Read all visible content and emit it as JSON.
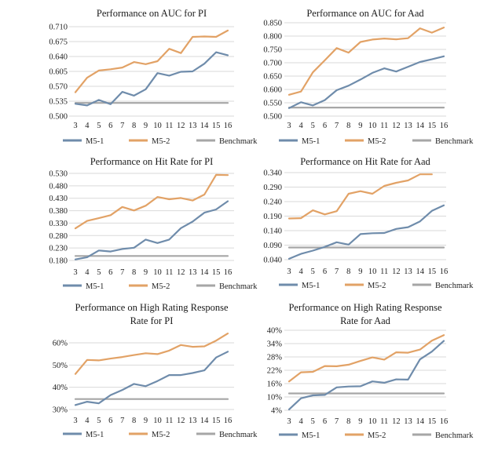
{
  "colors": {
    "M5-1": "#6f8cab",
    "M5-2": "#e2a266",
    "Benchmark": "#a6a6a6"
  },
  "chart_data": [
    {
      "type": "line",
      "title": [
        "Performance on AUC for PI"
      ],
      "x": [
        3,
        4,
        5,
        6,
        7,
        8,
        9,
        10,
        11,
        12,
        13,
        14,
        15,
        16
      ],
      "yticks": [
        "0.500",
        "0.535",
        "0.570",
        "0.605",
        "0.640",
        "0.675",
        "0.710"
      ],
      "ylim": [
        0.5,
        0.71
      ],
      "xlabel": "",
      "ylabel": "",
      "legend": [
        "M5-1",
        "M5-2",
        "Benchmark"
      ],
      "legend_position": "bottom",
      "grid": true,
      "series": [
        {
          "name": "M5-1",
          "values": [
            0.529,
            0.525,
            0.538,
            0.528,
            0.557,
            0.548,
            0.563,
            0.601,
            0.595,
            0.604,
            0.605,
            0.623,
            0.65,
            0.643
          ]
        },
        {
          "name": "M5-2",
          "values": [
            0.556,
            0.59,
            0.607,
            0.61,
            0.614,
            0.627,
            0.622,
            0.629,
            0.658,
            0.648,
            0.686,
            0.687,
            0.686,
            0.701
          ]
        },
        {
          "name": "Benchmark",
          "values": [
            0.531,
            0.531,
            0.531,
            0.531,
            0.531,
            0.531,
            0.531,
            0.531,
            0.531,
            0.531,
            0.531,
            0.531,
            0.531,
            0.531
          ]
        }
      ]
    },
    {
      "type": "line",
      "title": [
        "Performance on AUC for Aad"
      ],
      "x": [
        3,
        4,
        5,
        6,
        7,
        8,
        9,
        10,
        11,
        12,
        13,
        14,
        15,
        16
      ],
      "yticks": [
        "0.500",
        "0.550",
        "0.600",
        "0.650",
        "0.700",
        "0.750",
        "0.800",
        "0.850"
      ],
      "ylim": [
        0.5,
        0.85
      ],
      "xlabel": "",
      "ylabel": "",
      "legend": [
        "M5-1",
        "M5-2",
        "Benchmark"
      ],
      "legend_position": "bottom",
      "grid": true,
      "series": [
        {
          "name": "M5-1",
          "values": [
            0.53,
            0.552,
            0.54,
            0.56,
            0.597,
            0.614,
            0.637,
            0.662,
            0.679,
            0.667,
            0.685,
            0.703,
            0.713,
            0.724
          ]
        },
        {
          "name": "M5-2",
          "values": [
            0.58,
            0.592,
            0.664,
            0.709,
            0.755,
            0.738,
            0.778,
            0.787,
            0.791,
            0.788,
            0.792,
            0.829,
            0.813,
            0.832
          ]
        },
        {
          "name": "Benchmark",
          "values": [
            0.532,
            0.532,
            0.532,
            0.532,
            0.532,
            0.532,
            0.532,
            0.532,
            0.532,
            0.532,
            0.532,
            0.532,
            0.532,
            0.532
          ]
        }
      ]
    },
    {
      "type": "line",
      "title": [
        "Performance on Hit Rate for PI"
      ],
      "x": [
        3,
        4,
        5,
        6,
        7,
        8,
        9,
        10,
        11,
        12,
        13,
        14,
        15,
        16
      ],
      "yticks": [
        "0.180",
        "0.230",
        "0.280",
        "0.330",
        "0.380",
        "0.430",
        "0.480",
        "0.530"
      ],
      "ylim": [
        0.18,
        0.53
      ],
      "xlabel": "",
      "ylabel": "",
      "legend": [
        "M5-1",
        "M5-2",
        "Benchmark"
      ],
      "legend_position": "bottom",
      "grid": true,
      "series": [
        {
          "name": "M5-1",
          "values": [
            0.184,
            0.193,
            0.22,
            0.216,
            0.226,
            0.231,
            0.264,
            0.25,
            0.264,
            0.31,
            0.336,
            0.372,
            0.385,
            0.418
          ]
        },
        {
          "name": "M5-2",
          "values": [
            0.309,
            0.339,
            0.35,
            0.362,
            0.395,
            0.381,
            0.4,
            0.435,
            0.426,
            0.431,
            0.421,
            0.445,
            0.524,
            0.523
          ]
        },
        {
          "name": "Benchmark",
          "values": [
            0.198,
            0.198,
            0.198,
            0.198,
            0.198,
            0.198,
            0.198,
            0.198,
            0.198,
            0.198,
            0.198,
            0.198,
            0.198,
            0.198
          ]
        }
      ]
    },
    {
      "type": "line",
      "title": [
        "Performance on Hit Rate for Aad"
      ],
      "x": [
        3,
        4,
        5,
        6,
        7,
        8,
        9,
        10,
        11,
        12,
        13,
        14,
        15,
        16
      ],
      "yticks": [
        "0.040",
        "0.090",
        "0.140",
        "0.190",
        "0.240",
        "0.290",
        "0.340"
      ],
      "ylim": [
        0.04,
        0.34
      ],
      "xlabel": "",
      "ylabel": "",
      "legend": [
        "M5-1",
        "M5-2",
        "Benchmark"
      ],
      "legend_position": "bottom",
      "grid": true,
      "series": [
        {
          "name": "M5-1",
          "values": [
            0.043,
            0.06,
            0.071,
            0.084,
            0.1,
            0.092,
            0.128,
            0.131,
            0.132,
            0.146,
            0.152,
            0.172,
            0.208,
            0.227
          ]
        },
        {
          "name": "M5-2",
          "values": [
            0.182,
            0.183,
            0.21,
            0.196,
            0.207,
            0.267,
            0.276,
            0.267,
            0.294,
            0.305,
            0.313,
            0.334,
            0.334,
            null
          ]
        },
        {
          "name": "Benchmark",
          "values": [
            0.082,
            0.082,
            0.082,
            0.082,
            0.082,
            0.082,
            0.082,
            0.082,
            0.082,
            0.082,
            0.082,
            0.082,
            0.082,
            0.082
          ]
        }
      ]
    },
    {
      "type": "line",
      "title": [
        "Performance on High Rating Response",
        "Rate for PI"
      ],
      "x": [
        3,
        4,
        5,
        6,
        7,
        8,
        9,
        10,
        11,
        12,
        13,
        14,
        15,
        16
      ],
      "yticks": [
        "30%",
        "40%",
        "50%",
        "60%"
      ],
      "ylim": [
        30,
        60
      ],
      "y_unit": "percent",
      "xlabel": "",
      "ylabel": "",
      "legend": [
        "M5-1",
        "M5-2",
        "Benchmark"
      ],
      "legend_position": "bottom",
      "grid": true,
      "series": [
        {
          "name": "M5-1",
          "values": [
            32.0,
            33.5,
            32.8,
            36.5,
            38.8,
            41.5,
            40.5,
            42.8,
            45.5,
            45.5,
            46.4,
            47.6,
            53.4,
            56.0
          ]
        },
        {
          "name": "M5-2",
          "values": [
            46.0,
            52.3,
            52.1,
            52.9,
            53.6,
            54.5,
            55.3,
            54.9,
            56.5,
            59.0,
            58.2,
            58.4,
            61.0,
            64.2
          ]
        },
        {
          "name": "Benchmark",
          "values": [
            34.7,
            34.7,
            34.7,
            34.7,
            34.7,
            34.7,
            34.7,
            34.7,
            34.7,
            34.7,
            34.7,
            34.7,
            34.7,
            34.7
          ]
        }
      ]
    },
    {
      "type": "line",
      "title": [
        "Performance on High Rating Response",
        "Rate for Aad"
      ],
      "x": [
        3,
        4,
        5,
        6,
        7,
        8,
        9,
        10,
        11,
        12,
        13,
        14,
        15,
        16
      ],
      "yticks": [
        "4%",
        "10%",
        "16%",
        "22%",
        "28%",
        "34%",
        "40%"
      ],
      "ylim": [
        4,
        40
      ],
      "y_unit": "percent",
      "xlabel": "",
      "ylabel": "",
      "legend": [
        "M5-1",
        "M5-2",
        "Benchmark"
      ],
      "legend_position": "bottom",
      "grid": true,
      "series": [
        {
          "name": "M5-1",
          "values": [
            4.4,
            9.4,
            10.7,
            10.9,
            14.3,
            14.7,
            14.8,
            17.0,
            16.4,
            17.9,
            17.8,
            26.9,
            30.4,
            35.2
          ]
        },
        {
          "name": "M5-2",
          "values": [
            17.0,
            21.1,
            21.3,
            23.9,
            23.8,
            24.5,
            26.2,
            27.8,
            26.8,
            30.1,
            29.9,
            31.3,
            35.3,
            37.8
          ]
        },
        {
          "name": "Benchmark",
          "values": [
            11.6,
            11.6,
            11.6,
            11.6,
            11.6,
            11.6,
            11.6,
            11.6,
            11.6,
            11.6,
            11.6,
            11.6,
            11.6,
            11.6
          ]
        }
      ]
    }
  ]
}
